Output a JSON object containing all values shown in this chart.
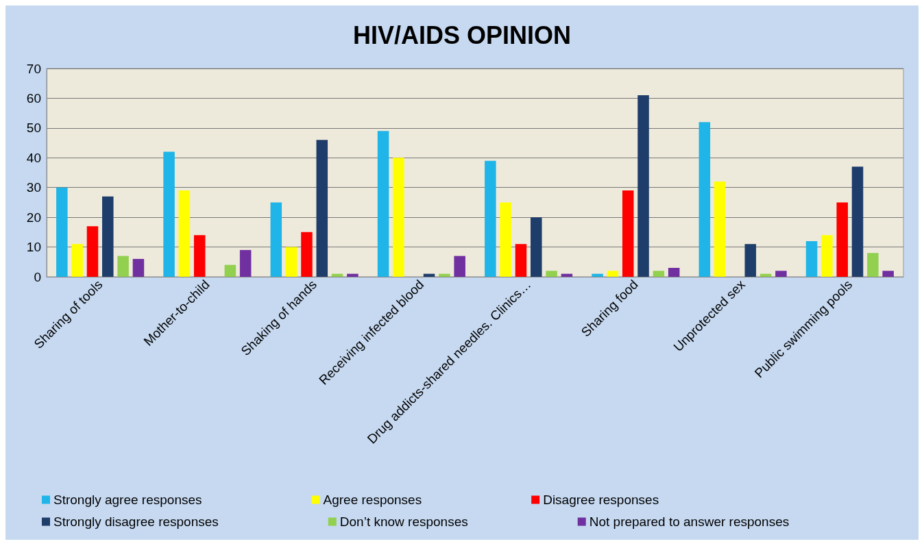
{
  "chart_data": {
    "type": "bar",
    "title": "HIV/AIDS OPINION",
    "categories": [
      "Sharing of tools",
      "Mother-to-child",
      "Shaking of hands",
      "Receiving infected blood",
      "Drug addicts-shared needles. Clinics…",
      "Sharing food",
      "Unprotected sex",
      "Public swimming pools"
    ],
    "series": [
      {
        "name": "Strongly agree responses",
        "color": "#1fb5e8",
        "values": [
          30,
          42,
          25,
          49,
          39,
          1,
          52,
          12
        ]
      },
      {
        "name": "Agree responses",
        "color": "#ffff00",
        "values": [
          11,
          29,
          10,
          40,
          25,
          2,
          32,
          14
        ]
      },
      {
        "name": "Disagree responses",
        "color": "#ff0000",
        "values": [
          17,
          14,
          15,
          0,
          11,
          29,
          0,
          25
        ]
      },
      {
        "name": "Strongly disagree responses",
        "color": "#1f3d6b",
        "values": [
          27,
          0,
          46,
          1,
          20,
          61,
          11,
          37
        ]
      },
      {
        "name": "Don’t know responses",
        "color": "#92d050",
        "values": [
          7,
          4,
          1,
          1,
          2,
          2,
          1,
          8
        ]
      },
      {
        "name": "Not prepared to answer responses",
        "color": "#7030a0",
        "values": [
          6,
          9,
          1,
          7,
          1,
          3,
          2,
          2
        ]
      }
    ],
    "ylim": [
      0,
      70
    ],
    "yticks": [
      0,
      10,
      20,
      30,
      40,
      50,
      60,
      70
    ],
    "grid": "y",
    "legend": "bottom"
  }
}
